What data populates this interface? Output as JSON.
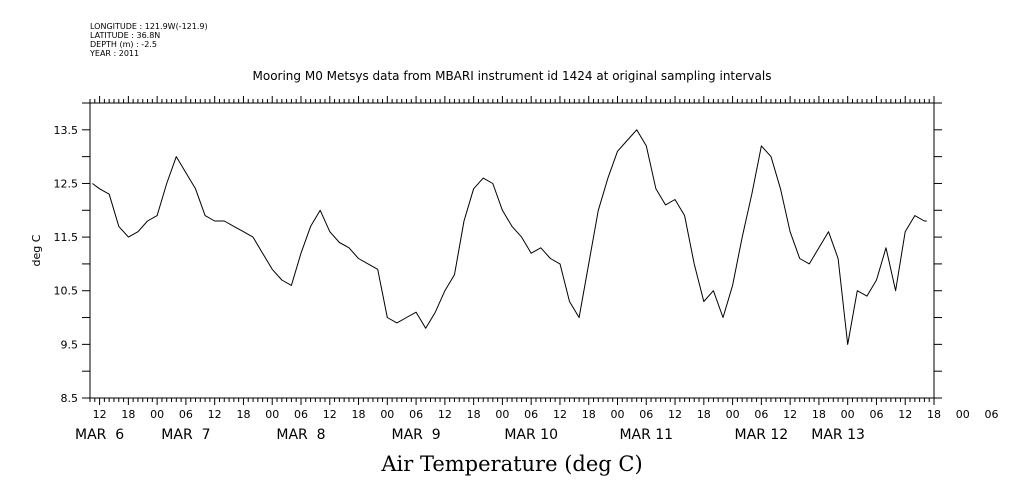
{
  "meta": {
    "longitude": "LONGITUDE : 121.9W(-121.9)",
    "latitude": "LATITUDE : 36.8N",
    "depth": "DEPTH (m) : -2.5",
    "year": "YEAR : 2011"
  },
  "title": "Mooring M0 Metsys data from MBARI instrument id 1424 at original sampling intervals",
  "caption": "Air Temperature (deg C)",
  "chart_data": {
    "type": "line",
    "title": "Mooring M0 Metsys data from MBARI instrument id 1424 at original sampling intervals",
    "xlabel": "Air Temperature (deg C)",
    "ylabel": "deg C",
    "x_unit": "hours since MAR 6 00:00, 2011",
    "xlim": [
      -14,
      162
    ],
    "ylim": [
      8.5,
      14.0
    ],
    "yticks": [
      "8.5",
      "9.5",
      "10.5",
      "11.5",
      "12.5",
      "13.5"
    ],
    "hour_ticks": [
      "12",
      "18",
      "00",
      "06",
      "12",
      "18",
      "00",
      "06",
      "12",
      "18",
      "00",
      "06",
      "12",
      "18",
      "00",
      "06",
      "12",
      "18",
      "00",
      "06",
      "12",
      "18",
      "00",
      "06",
      "12",
      "18",
      "00",
      "06",
      "12",
      "18",
      "00",
      "06"
    ],
    "day_labels": [
      "MAR  6",
      "MAR  7",
      "MAR  8",
      "MAR  9",
      "MAR 10",
      "MAR 11",
      "MAR 12",
      "MAR 13"
    ],
    "day_label_x": [
      -12,
      6,
      30,
      54,
      78,
      102,
      126,
      142
    ],
    "series": [
      {
        "color": "#000000",
        "x": [
          -13.5,
          -12,
          -10,
          -8,
          -6,
          -4,
          -2,
          0,
          2,
          4,
          6,
          8,
          10,
          12,
          14,
          16,
          18,
          20,
          22,
          24,
          26,
          28,
          30,
          32,
          34,
          36,
          38,
          40,
          42,
          44,
          46,
          48,
          50,
          52,
          54,
          56,
          58,
          60,
          62,
          64,
          66,
          68,
          70,
          72,
          74,
          76,
          78,
          80,
          82,
          84,
          86,
          88,
          90,
          92,
          94,
          96,
          98,
          100,
          102,
          104,
          106,
          108,
          110,
          112,
          114,
          116,
          118,
          120,
          122,
          124,
          126,
          128,
          130,
          132,
          134,
          136,
          138,
          140,
          142,
          144,
          146,
          148,
          150,
          152,
          154,
          156,
          158,
          160,
          160.5
        ],
        "y": [
          12.5,
          12.4,
          12.3,
          11.7,
          11.5,
          11.6,
          11.8,
          11.9,
          12.5,
          13.0,
          12.7,
          12.4,
          11.9,
          11.8,
          11.8,
          11.7,
          11.6,
          11.5,
          11.2,
          10.9,
          10.7,
          10.6,
          11.2,
          11.7,
          12.0,
          11.6,
          11.4,
          11.3,
          11.1,
          11.0,
          10.9,
          10.0,
          9.9,
          10.0,
          10.1,
          9.8,
          10.1,
          10.5,
          10.8,
          11.8,
          12.4,
          12.6,
          12.5,
          12.0,
          11.7,
          11.5,
          11.2,
          11.3,
          11.1,
          11.0,
          10.3,
          10.0,
          11.0,
          12.0,
          12.6,
          13.1,
          13.3,
          13.5,
          13.2,
          12.4,
          12.1,
          12.2,
          11.9,
          11.0,
          10.3,
          10.5,
          10.0,
          10.6,
          11.5,
          12.3,
          13.2,
          13.0,
          12.4,
          11.6,
          11.1,
          11.0,
          11.3,
          11.6,
          11.1,
          9.5,
          10.5,
          10.4,
          10.7,
          11.3,
          10.5,
          11.6,
          11.9,
          11.8,
          11.8
        ]
      }
    ]
  }
}
